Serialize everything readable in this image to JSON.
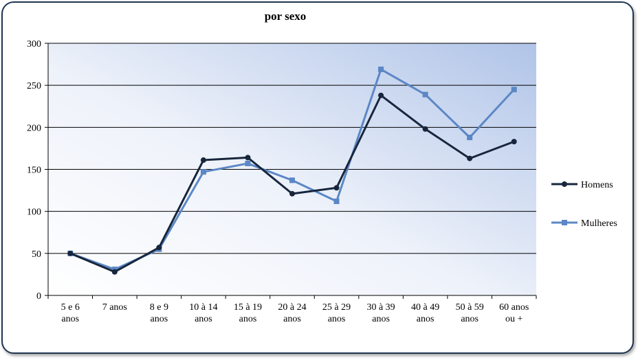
{
  "chart_data": {
    "type": "line",
    "title": "por sexo",
    "xlabel": "",
    "ylabel": "",
    "ylim": [
      0,
      300
    ],
    "yticks": [
      0,
      50,
      100,
      150,
      200,
      250,
      300
    ],
    "grid": true,
    "legend_position": "right",
    "categories": [
      [
        "5 e 6",
        "anos"
      ],
      [
        "7 anos"
      ],
      [
        "8 e 9",
        "anos"
      ],
      [
        "10 à 14",
        "anos"
      ],
      [
        "15 à 19",
        "anos"
      ],
      [
        "20 à 24",
        "anos"
      ],
      [
        "25 à 29",
        "anos"
      ],
      [
        "30 à 39",
        "anos"
      ],
      [
        "40 à 49",
        "anos"
      ],
      [
        "50 à 59",
        "anos"
      ],
      [
        "60 anos",
        "ou +"
      ]
    ],
    "series": [
      {
        "name": "Homens",
        "color": "#17263c",
        "marker": "circle",
        "values": [
          50,
          28,
          57,
          161,
          164,
          121,
          128,
          238,
          198,
          163,
          183
        ]
      },
      {
        "name": "Mulheres",
        "color": "#5b87c5",
        "marker": "square",
        "values": [
          50,
          31,
          55,
          147,
          157,
          137,
          112,
          269,
          239,
          188,
          245
        ]
      }
    ]
  }
}
